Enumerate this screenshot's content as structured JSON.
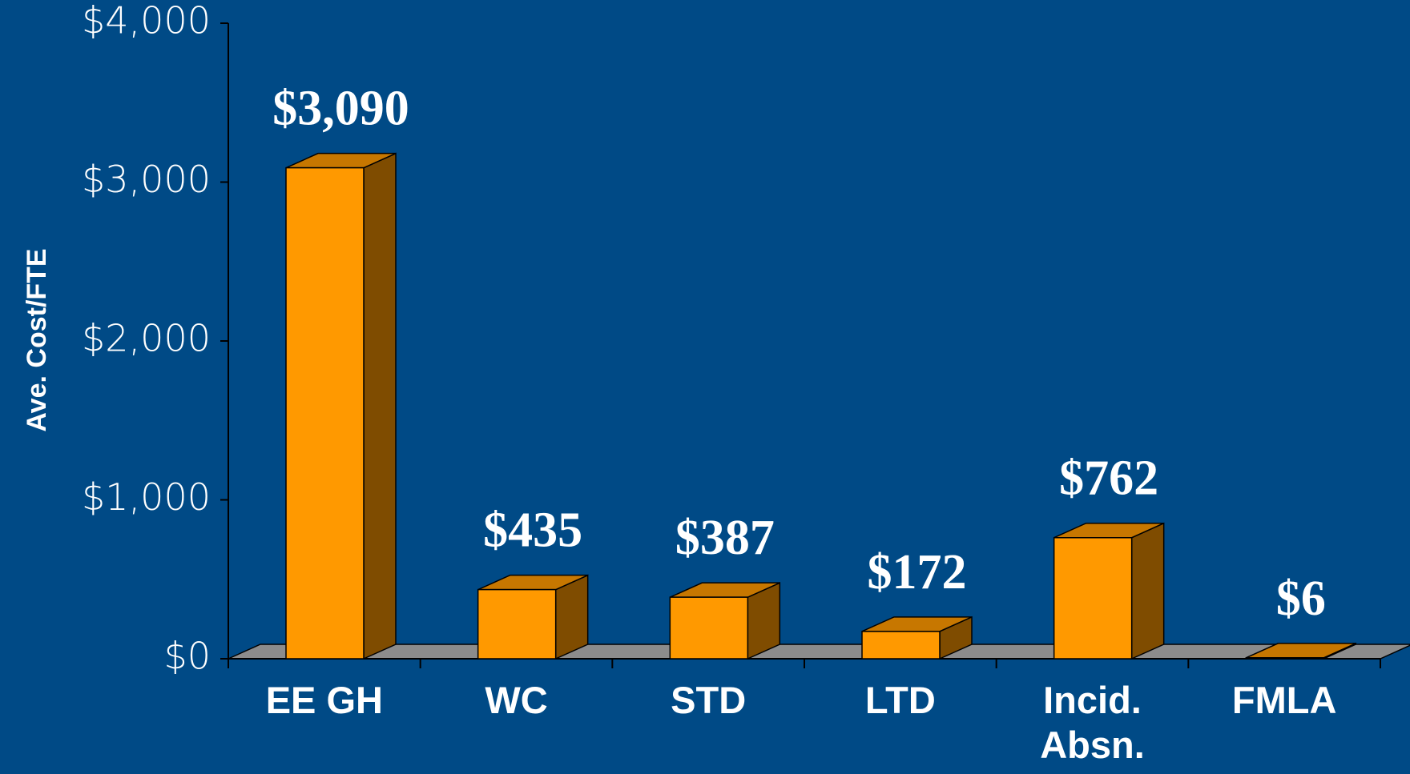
{
  "chart_data": {
    "type": "bar3d",
    "y_axis_label": "Ave. Cost/FTE",
    "categories": [
      "EE GH",
      "WC",
      "STD",
      "LTD",
      "Incid. Absn.",
      "FMLA"
    ],
    "values": [
      3090,
      435,
      387,
      172,
      762,
      6
    ],
    "value_labels": [
      "$3,090",
      "$435",
      "$387",
      "$172",
      "$762",
      "$6"
    ],
    "color": "#ff9900",
    "ylim": [
      0,
      4000
    ],
    "yticks": [
      {
        "value": 0,
        "label": "$0"
      },
      {
        "value": 1000,
        "label": "$1,000"
      },
      {
        "value": 2000,
        "label": "$2,000"
      },
      {
        "value": 3000,
        "label": "$3,000"
      },
      {
        "value": 4000,
        "label": "$4,000"
      }
    ]
  }
}
